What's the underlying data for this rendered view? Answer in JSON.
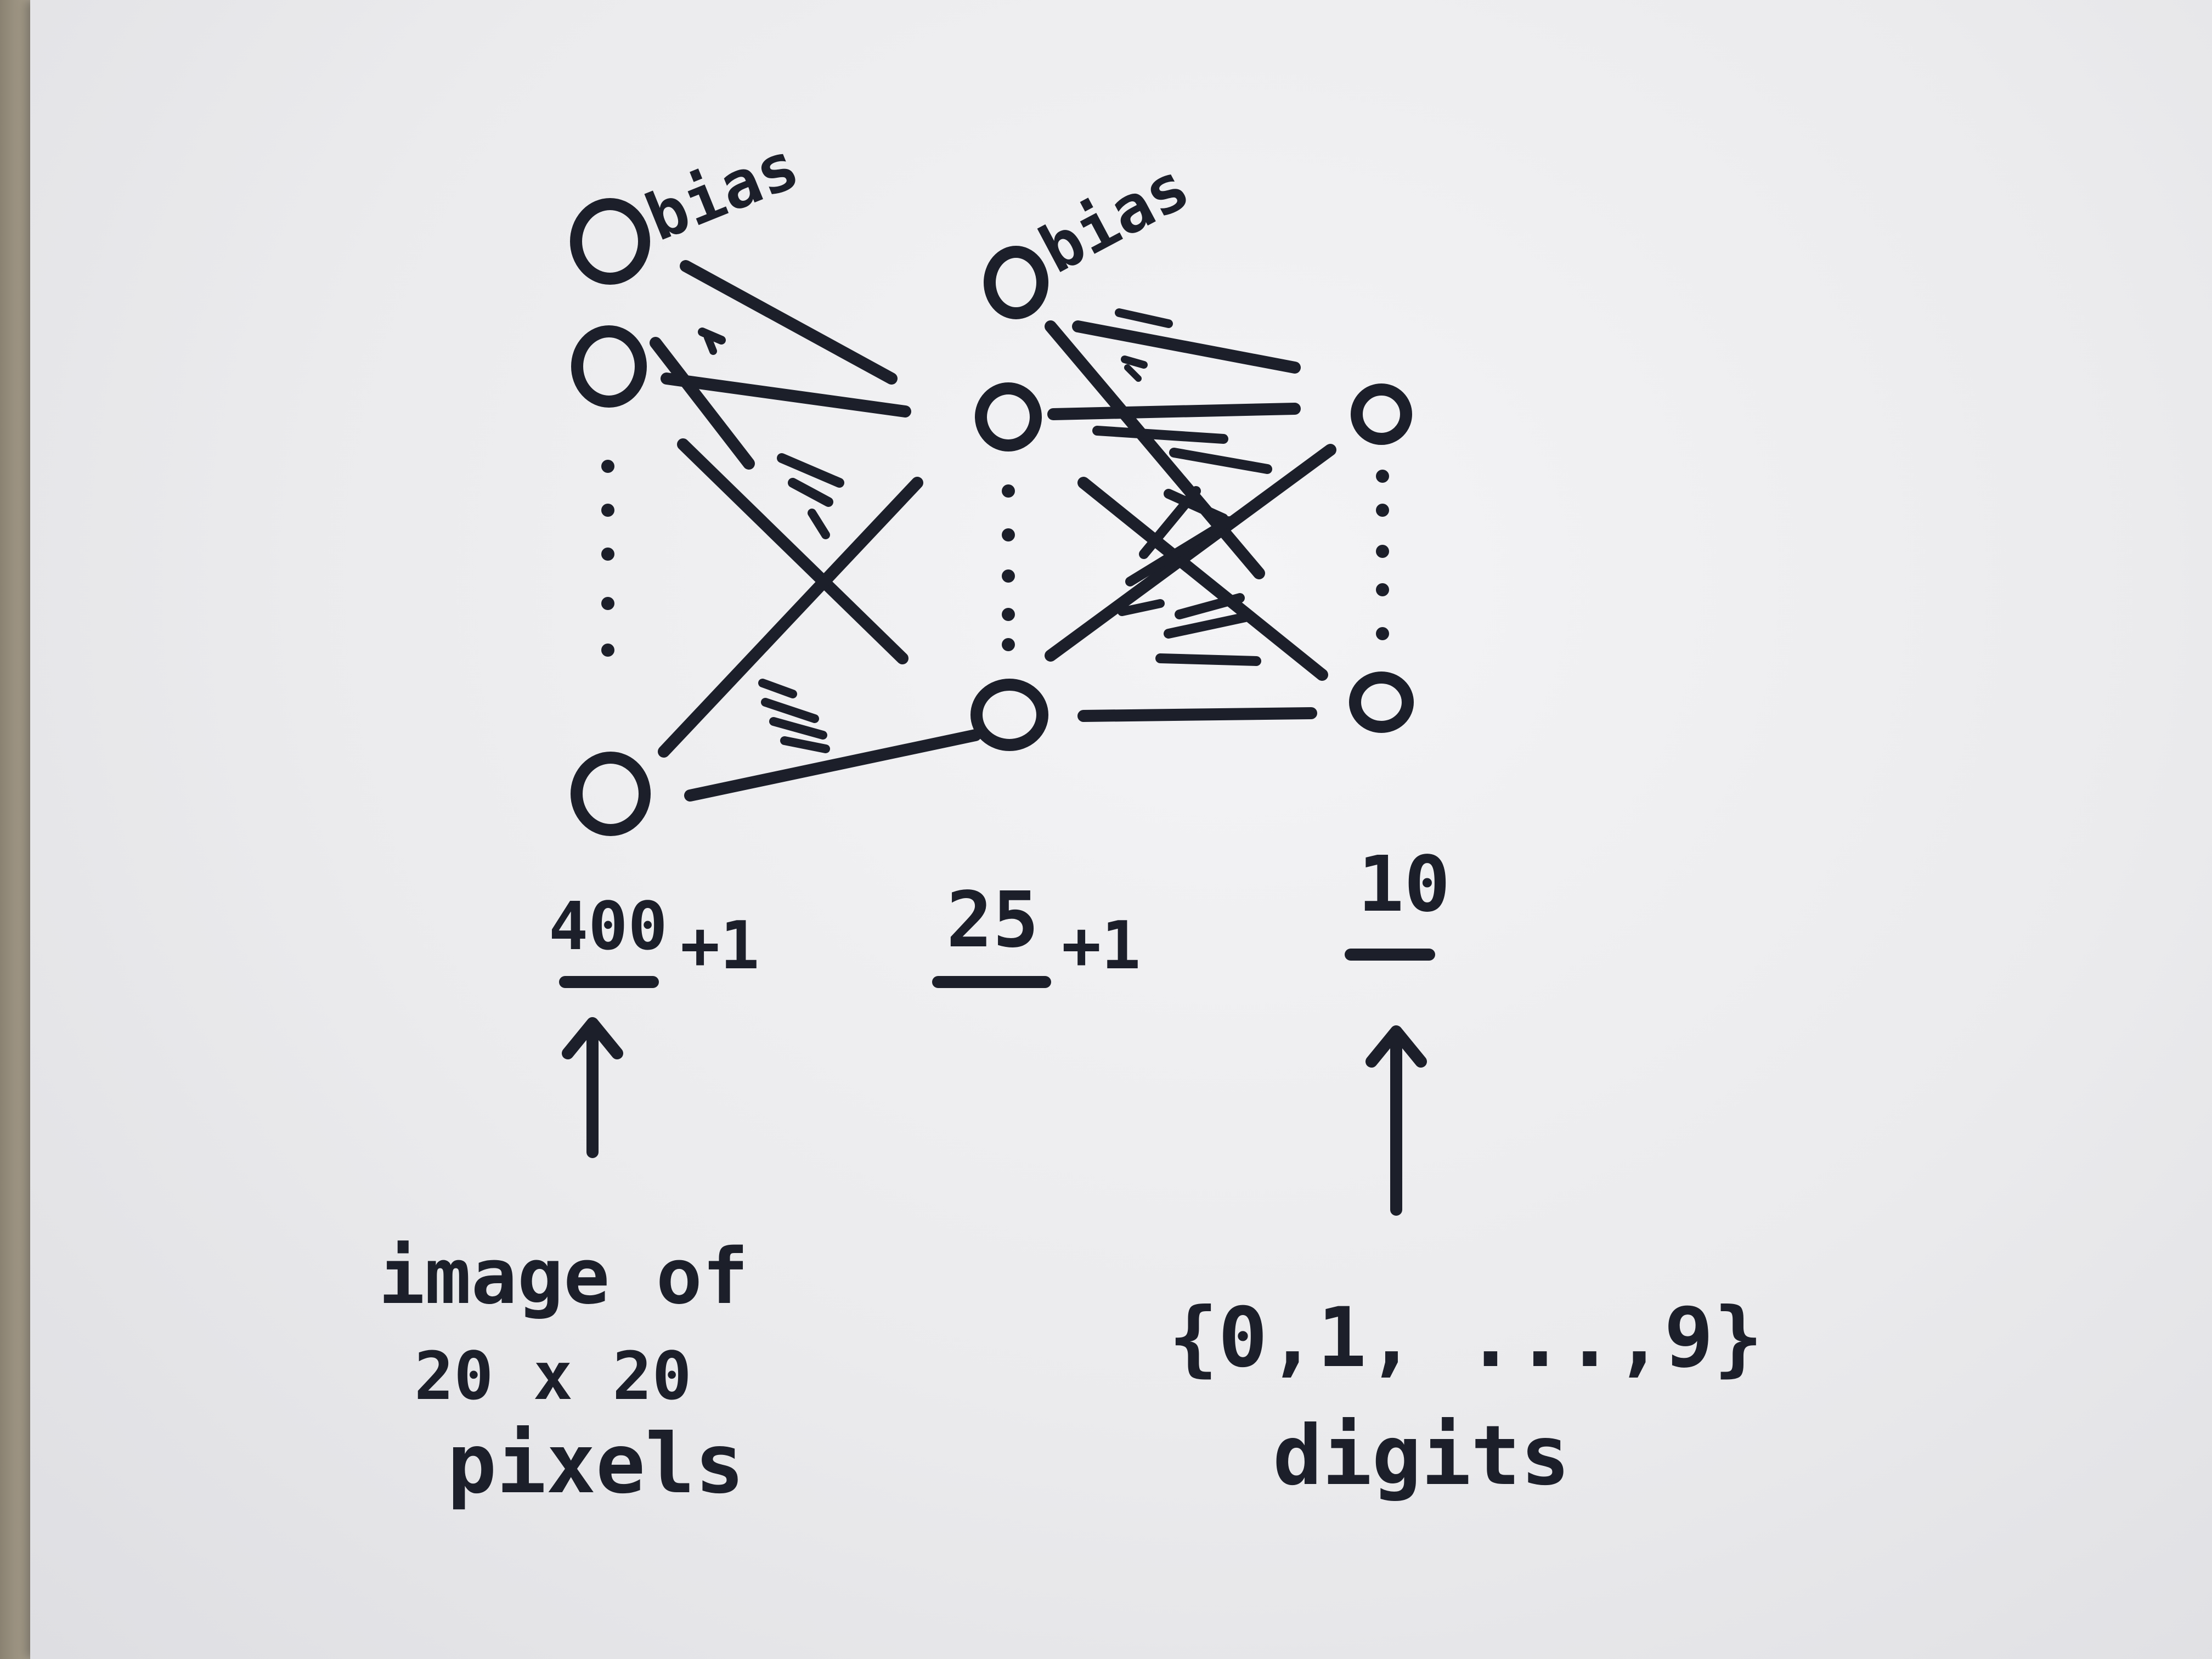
{
  "diagram": {
    "input_layer": {
      "bias_label": "bias",
      "size_label": "400",
      "plus_bias": "+1",
      "caption_line1": "image of",
      "caption_line2": "20 x 20",
      "caption_line3": "pixels"
    },
    "hidden_layer": {
      "bias_label": "bias",
      "size_label": "25",
      "plus_bias": "+1"
    },
    "output_layer": {
      "size_label": "10",
      "caption_line1": "{0,1, ...,9}",
      "caption_line2": "digits"
    },
    "ink_color": "#1c1f2a",
    "paper_color": "#ececee"
  }
}
